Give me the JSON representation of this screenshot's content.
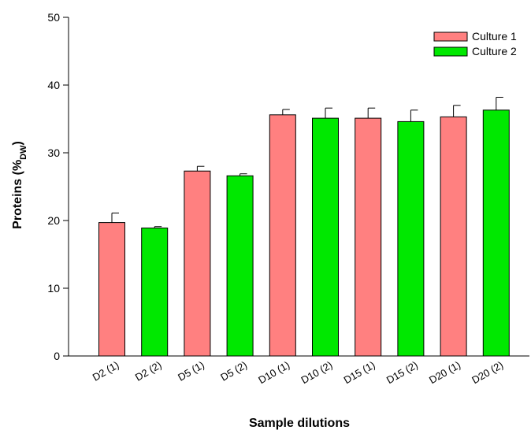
{
  "chart_data": {
    "type": "bar",
    "xlabel": "Sample dilutions",
    "ylabel": "Proteins (%",
    "ylabel_sub": "DW",
    "ylabel_suffix": ")",
    "ylim": [
      0,
      50
    ],
    "yticks": [
      0,
      10,
      20,
      30,
      40,
      50
    ],
    "grid": false,
    "legend_position": "top-right",
    "categories": [
      "D2 (1)",
      "D2 (2)",
      "D5 (1)",
      "D5 (2)",
      "D10 (1)",
      "D10 (2)",
      "D15 (1)",
      "D15 (2)",
      "D20 (1)",
      "D20 (2)"
    ],
    "values": [
      19.7,
      18.9,
      27.3,
      26.6,
      35.6,
      35.1,
      35.1,
      34.6,
      35.3,
      36.3
    ],
    "errors": [
      1.4,
      0.2,
      0.7,
      0.3,
      0.8,
      1.5,
      1.5,
      1.7,
      1.7,
      1.9
    ],
    "bar_series": [
      0,
      1,
      0,
      1,
      0,
      1,
      0,
      1,
      0,
      1
    ],
    "series": [
      {
        "name": "Culture 1",
        "color": "#ff8080"
      },
      {
        "name": "Culture 2",
        "color": "#00e800"
      }
    ]
  }
}
